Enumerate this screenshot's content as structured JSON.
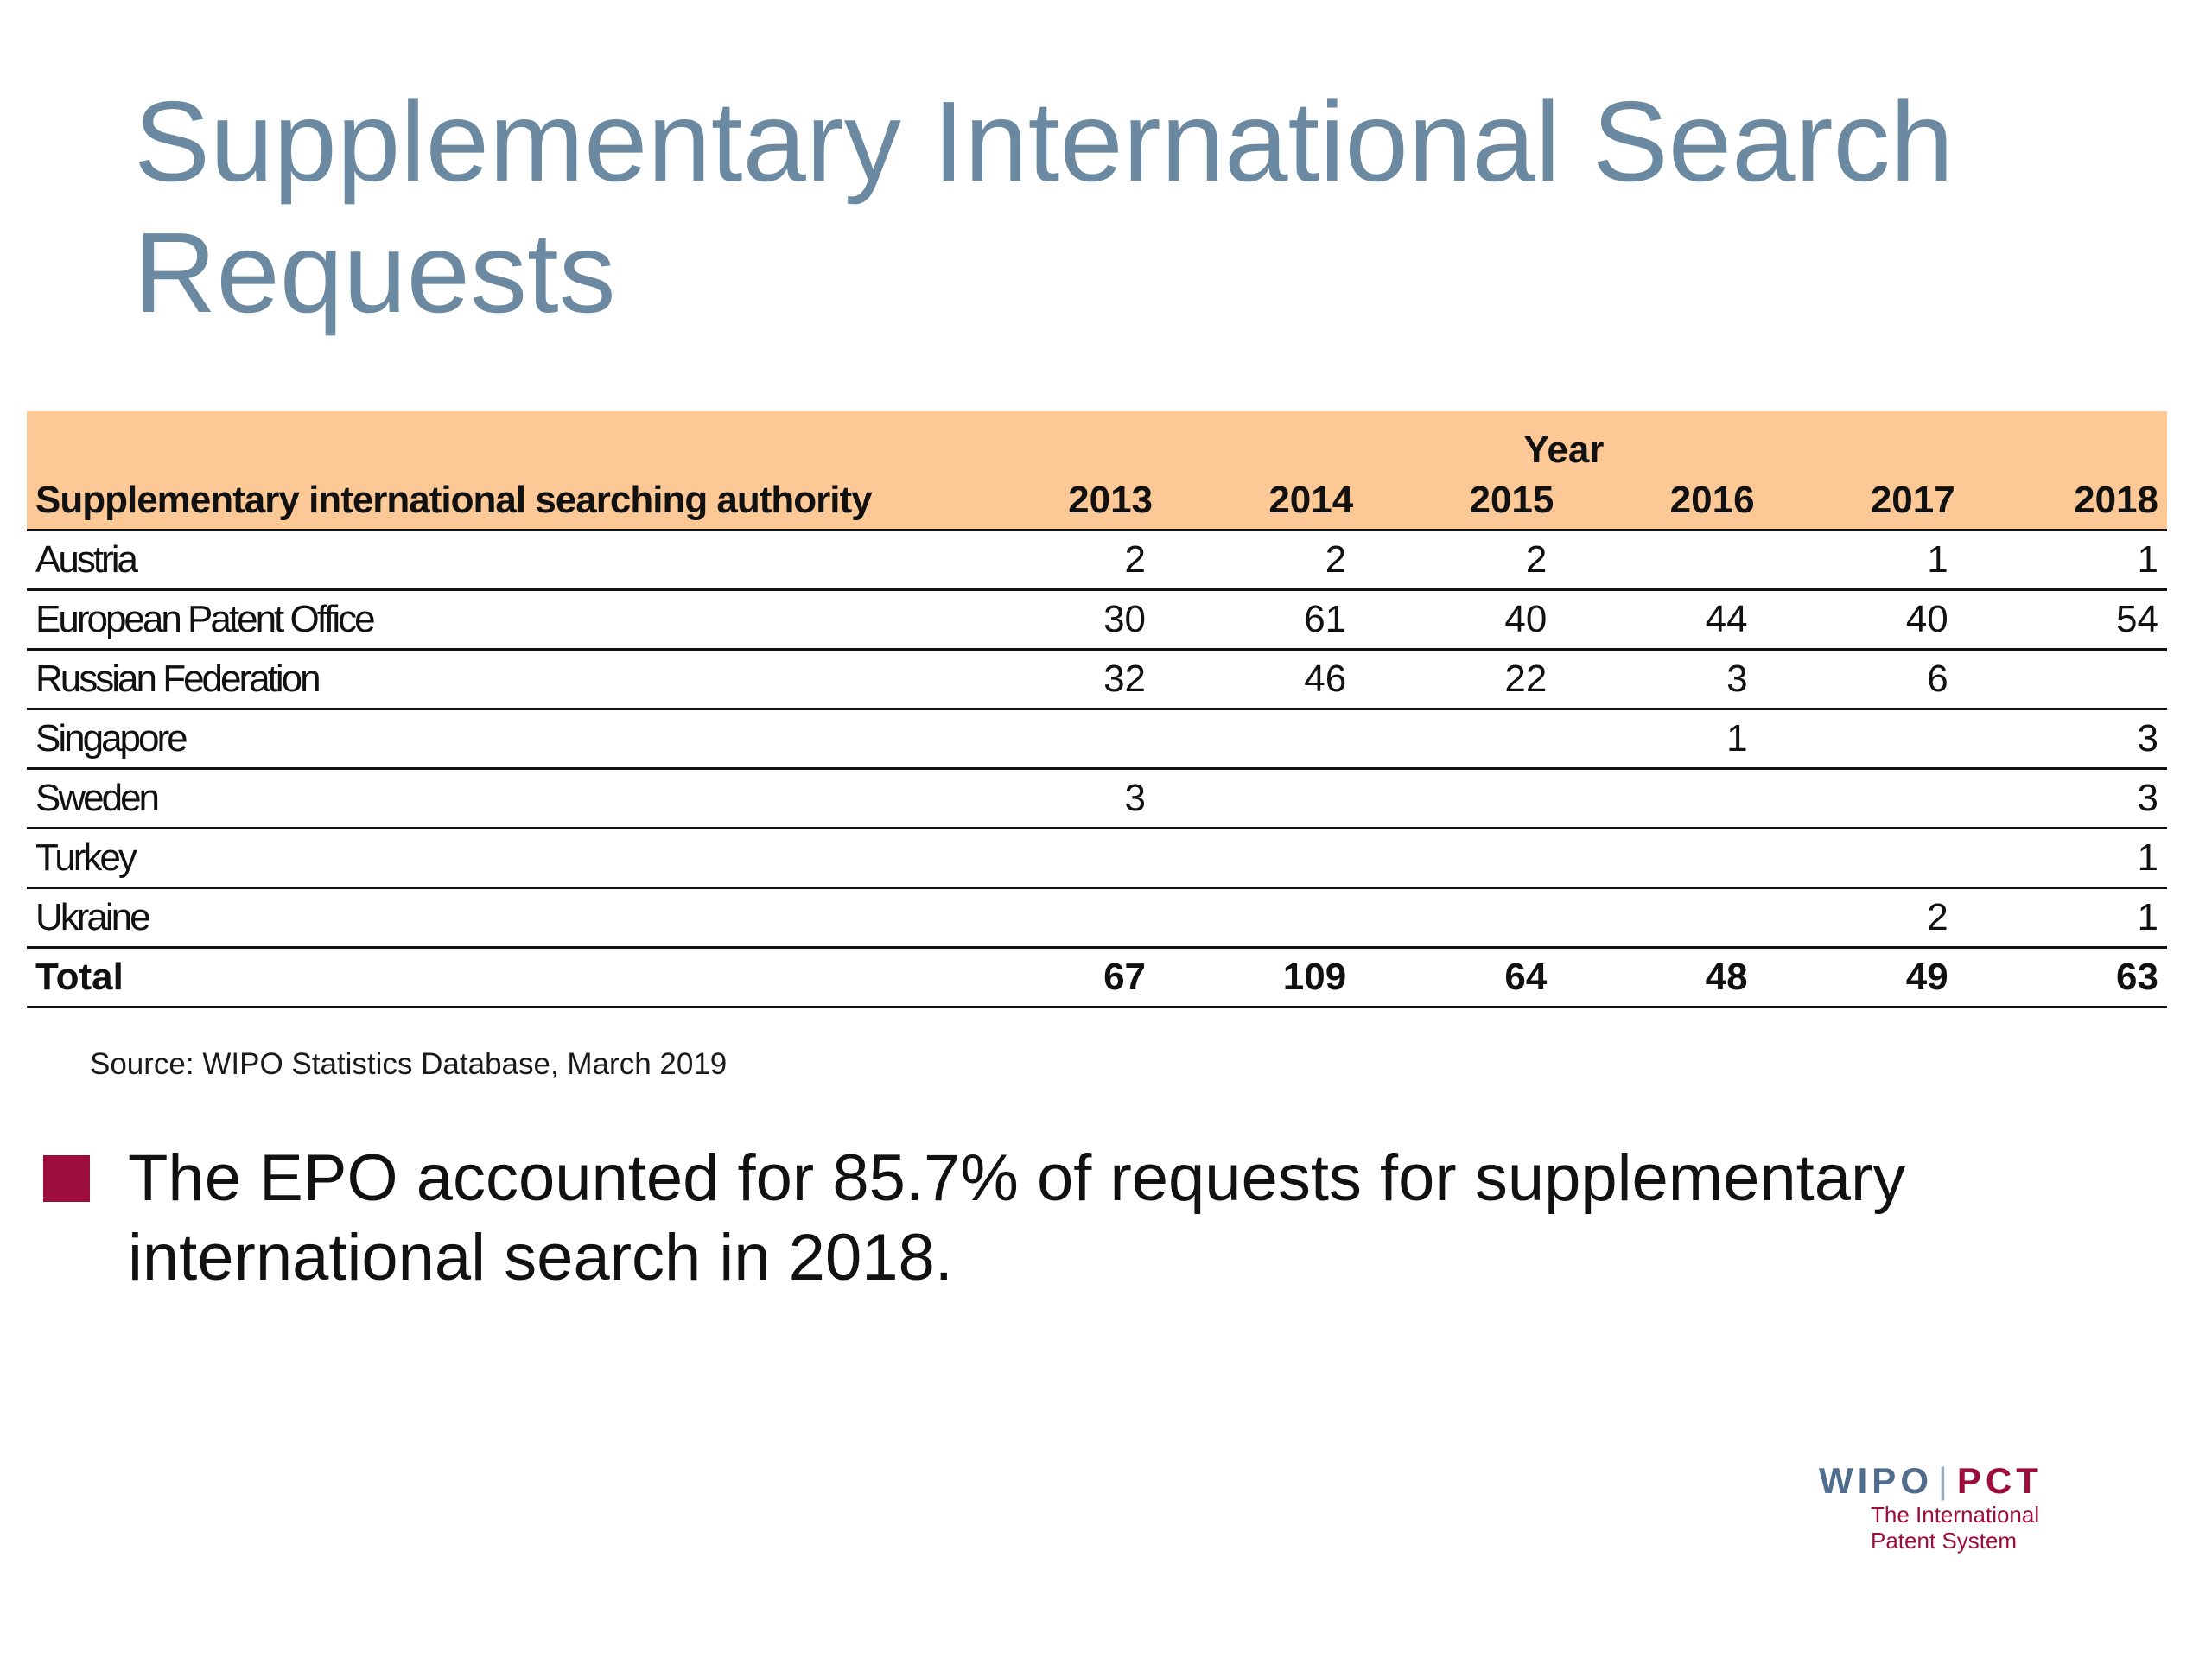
{
  "slide": {
    "title_lines": [
      "Supplementary International Search",
      "Requests"
    ]
  },
  "table": {
    "year_group_label": "Year",
    "authority_header": "Supplementary international searching authority",
    "years": [
      "2013",
      "2014",
      "2015",
      "2016",
      "2017",
      "2018"
    ],
    "rows": [
      {
        "name": "Austria",
        "values": [
          "2",
          "2",
          "2",
          "",
          "1",
          "1"
        ]
      },
      {
        "name": "European Patent Office",
        "values": [
          "30",
          "61",
          "40",
          "44",
          "40",
          "54"
        ]
      },
      {
        "name": "Russian Federation",
        "values": [
          "32",
          "46",
          "22",
          "3",
          "6",
          ""
        ]
      },
      {
        "name": "Singapore",
        "values": [
          "",
          "",
          "",
          "1",
          "",
          "3"
        ]
      },
      {
        "name": "Sweden",
        "values": [
          "3",
          "",
          "",
          "",
          "",
          "3"
        ]
      },
      {
        "name": "Turkey",
        "values": [
          "",
          "",
          "",
          "",
          "",
          "1"
        ]
      },
      {
        "name": "Ukraine",
        "values": [
          "",
          "",
          "",
          "",
          "2",
          "1"
        ]
      }
    ],
    "total": {
      "name": "Total",
      "values": [
        "67",
        "109",
        "64",
        "48",
        "49",
        "63"
      ]
    }
  },
  "source": "Source: WIPO Statistics Database, March 2019",
  "bullet": {
    "lines": [
      "The EPO accounted for 85.7% of requests for supplementary",
      "international search in 2018."
    ]
  },
  "logo": {
    "wipo": "WIPO",
    "separator": "|",
    "pct": "PCT",
    "tagline_lines": [
      "The International",
      "Patent System"
    ]
  },
  "colors": {
    "title": "#6b8aa2",
    "header_fill": "#fcc896",
    "bullet": "#9c0c3c",
    "logo_wipo": "#4f6d8c",
    "logo_pct": "#9c0c3c"
  }
}
